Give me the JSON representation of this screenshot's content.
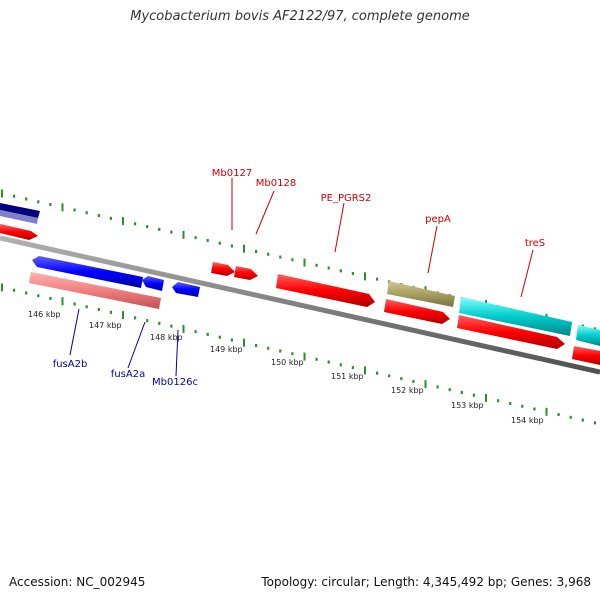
{
  "title": "Mycobacterium bovis AF2122/97, complete genome",
  "footer": {
    "accession": "Accession: NC_002945",
    "stats": "Topology: circular; Length: 4,345,492 bp; Genes: 3,968"
  },
  "scale_labels": [
    "146 kbp",
    "147 kbp",
    "148 kbp",
    "149 kbp",
    "150 kbp",
    "151 kbp",
    "152 kbp",
    "153 kbp",
    "154 kbp"
  ],
  "gene_labels": {
    "above": [
      "Mb0127",
      "Mb0128",
      "PE_PGRS2",
      "pepA",
      "treS"
    ],
    "below": [
      "fusA2b",
      "fusA2a",
      "Mb0126c"
    ]
  },
  "colors": {
    "backbone": "#808080",
    "tick": "#2e8b2e",
    "forward_cds": "#ff0000",
    "reverse_cds": "#0000ff",
    "pink_feature": "#f08080",
    "olive_feature": "#a8a060",
    "cyan_feature": "#00cccc",
    "navy_feature": "#000080",
    "lavender_feature": "#8080c8",
    "above_label": "#cc0000",
    "below_label": "#0000aa"
  }
}
